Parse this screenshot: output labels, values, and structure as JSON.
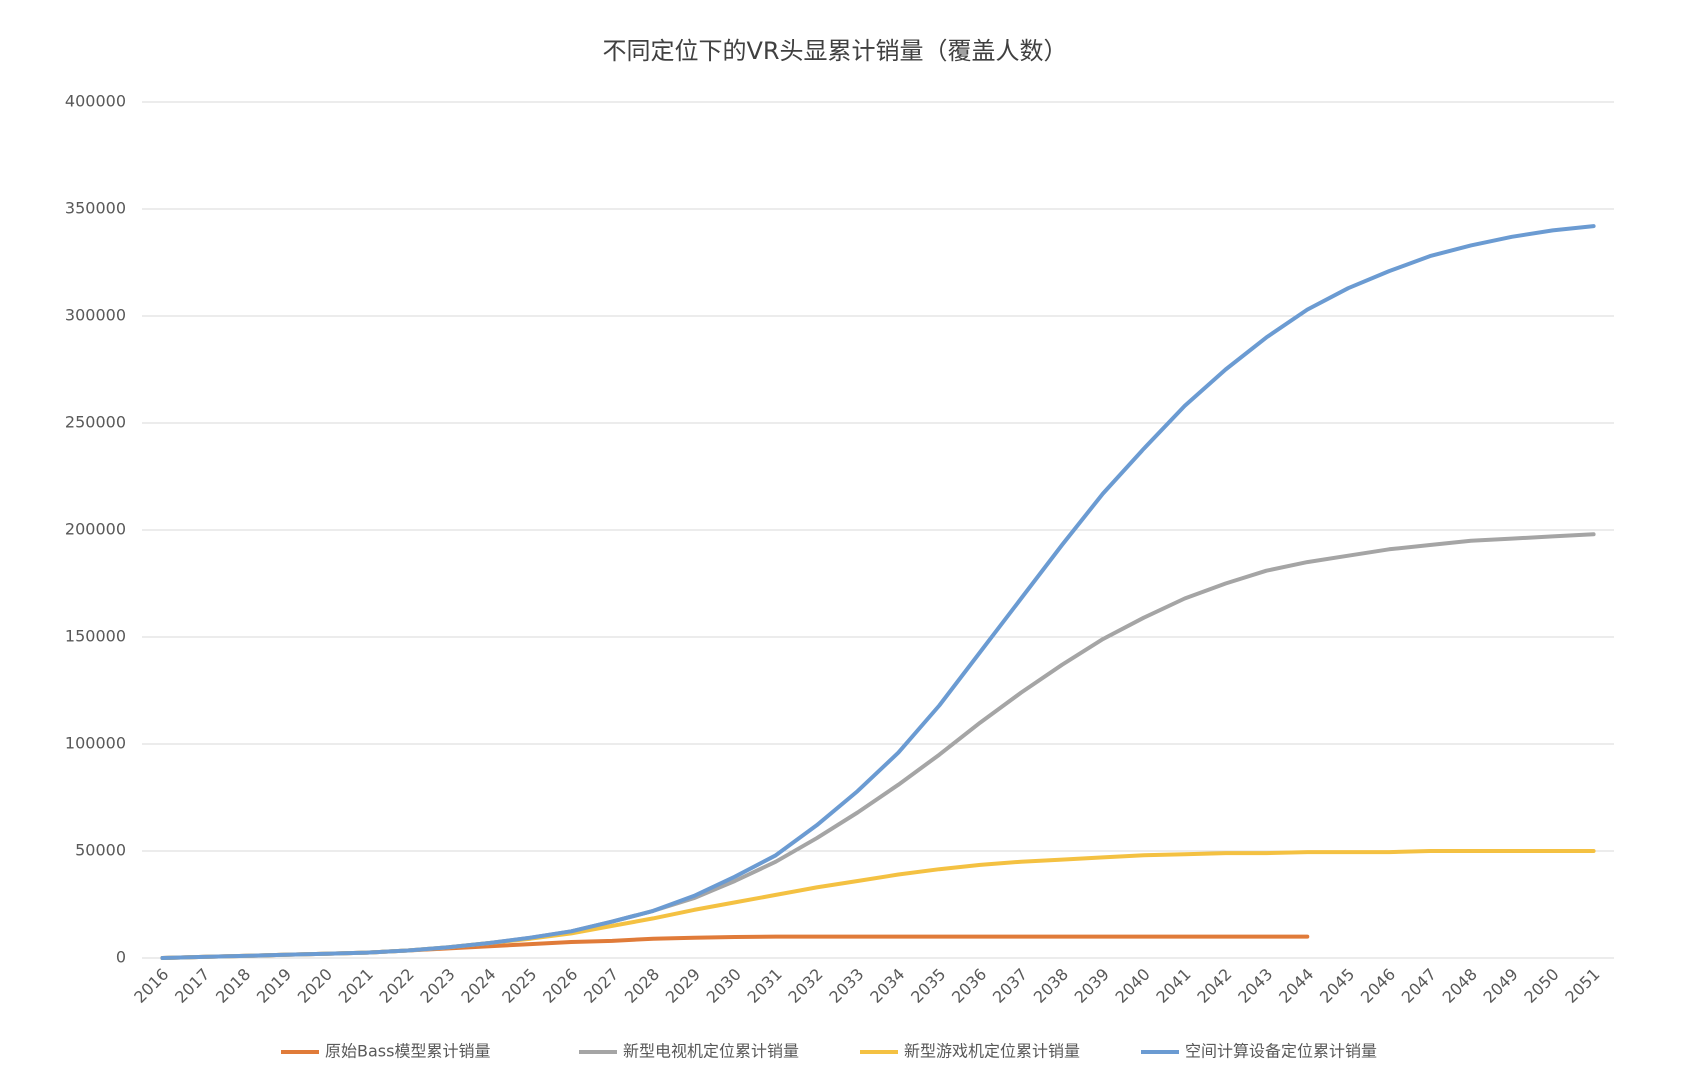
{
  "chart_data": {
    "type": "line",
    "title": "不同定位下的VR头显累计销量（覆盖人数）",
    "categories": [
      "2016",
      "2017",
      "2018",
      "2019",
      "2020",
      "2021",
      "2022",
      "2023",
      "2024",
      "2025",
      "2026",
      "2027",
      "2028",
      "2029",
      "2030",
      "2031",
      "2032",
      "2033",
      "2034",
      "2035",
      "2036",
      "2037",
      "2038",
      "2039",
      "2040",
      "2041",
      "2042",
      "2043",
      "2044",
      "2045",
      "2046",
      "2047",
      "2048",
      "2049",
      "2050",
      "2051"
    ],
    "series": [
      {
        "name": "原始Bass模型累计销量",
        "color": "#e07b39",
        "values": [
          0,
          500,
          1000,
          1500,
          2000,
          2500,
          3500,
          4500,
          5500,
          6500,
          7500,
          8000,
          9000,
          9500,
          9800,
          10000,
          10000,
          10000,
          10000,
          10000,
          10000,
          10000,
          10000,
          10000,
          10000,
          10000,
          10000,
          10000,
          10000,
          null,
          null,
          null,
          null,
          null,
          null,
          null
        ]
      },
      {
        "name": "新型电视机定位累计销量",
        "color": "#a5a5a5",
        "values": [
          0,
          500,
          1000,
          1500,
          2000,
          2500,
          3500,
          5000,
          7000,
          9500,
          12500,
          17000,
          22000,
          28000,
          36000,
          45000,
          56000,
          68000,
          81000,
          95000,
          110000,
          124000,
          137000,
          149000,
          159000,
          168000,
          175000,
          181000,
          185000,
          188000,
          191000,
          193000,
          195000,
          196000,
          197000,
          198000
        ]
      },
      {
        "name": "新型游戏机定位累计销量",
        "color": "#f4c142",
        "values": [
          0,
          500,
          1000,
          1500,
          2000,
          2500,
          3500,
          5000,
          7000,
          9000,
          11500,
          15000,
          18500,
          22500,
          26000,
          29500,
          33000,
          36000,
          39000,
          41500,
          43500,
          45000,
          46000,
          47000,
          48000,
          48500,
          49000,
          49000,
          49500,
          49500,
          49500,
          50000,
          50000,
          50000,
          50000,
          50000
        ]
      },
      {
        "name": "空间计算设备定位累计销量",
        "color": "#6b9bd2",
        "values": [
          0,
          500,
          1000,
          1500,
          2000,
          2500,
          3500,
          5000,
          7000,
          9500,
          12500,
          17000,
          22000,
          29000,
          38000,
          48000,
          62000,
          78000,
          96000,
          118000,
          143000,
          168000,
          193000,
          217000,
          238000,
          258000,
          275000,
          290000,
          303000,
          313000,
          321000,
          328000,
          333000,
          337000,
          340000,
          342000
        ]
      }
    ],
    "ylim": [
      0,
      400000
    ],
    "yticks": [
      0,
      50000,
      100000,
      150000,
      200000,
      250000,
      300000,
      350000,
      400000
    ],
    "grid": true,
    "legend": "bottom"
  }
}
